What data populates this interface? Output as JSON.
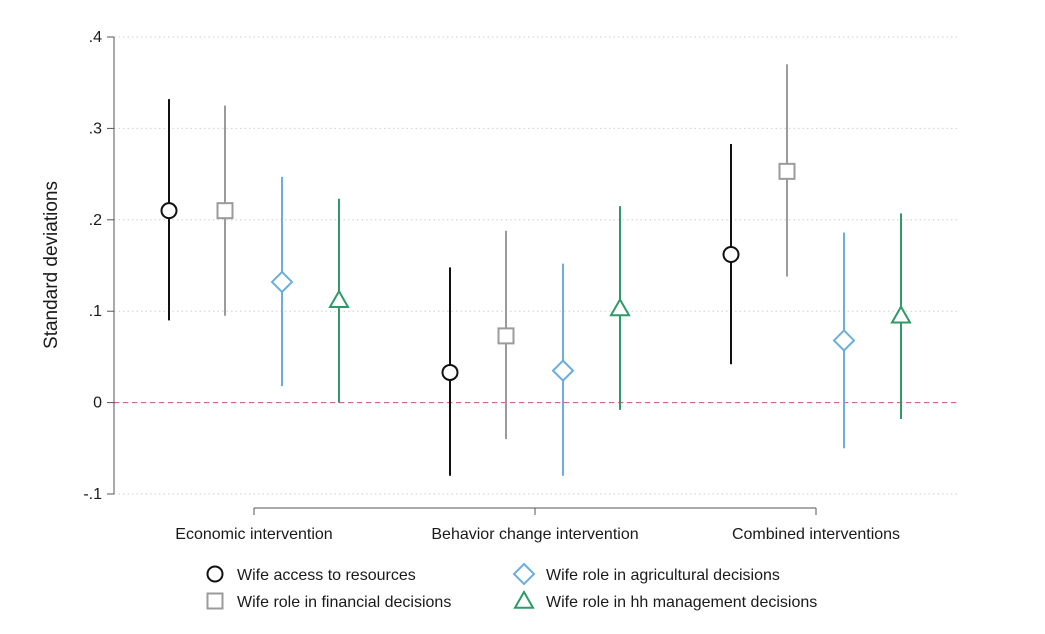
{
  "chart_data": {
    "type": "errorbar",
    "title": "",
    "xlabel": "",
    "ylabel": "Standard deviations",
    "ylim": [
      -0.1,
      0.4
    ],
    "yticks": [
      {
        "value": -0.1,
        "label": "-.1"
      },
      {
        "value": 0,
        "label": "0"
      },
      {
        "value": 0.1,
        "label": ".1"
      },
      {
        "value": 0.2,
        "label": ".2"
      },
      {
        "value": 0.3,
        "label": ".3"
      },
      {
        "value": 0.4,
        "label": ".4"
      }
    ],
    "grid": true,
    "reference_line": {
      "y": 0,
      "style": "dashed",
      "color": "#c0587e"
    },
    "categories": [
      "Economic intervention",
      "Behavior change intervention",
      "Combined interventions"
    ],
    "series": [
      {
        "name": "Wife access to resources",
        "marker": "circle",
        "color": "#111111",
        "points": [
          {
            "estimate": 0.21,
            "lower": 0.09,
            "upper": 0.332
          },
          {
            "estimate": 0.033,
            "lower": -0.08,
            "upper": 0.148
          },
          {
            "estimate": 0.162,
            "lower": 0.042,
            "upper": 0.283
          }
        ]
      },
      {
        "name": "Wife role in financial decisions",
        "marker": "square",
        "color": "#9b9b9b",
        "points": [
          {
            "estimate": 0.21,
            "lower": 0.095,
            "upper": 0.325
          },
          {
            "estimate": 0.073,
            "lower": -0.04,
            "upper": 0.188
          },
          {
            "estimate": 0.253,
            "lower": 0.138,
            "upper": 0.37
          }
        ]
      },
      {
        "name": "Wife role in agricultural decisions",
        "marker": "diamond",
        "color": "#6aaee0",
        "points": [
          {
            "estimate": 0.132,
            "lower": 0.018,
            "upper": 0.247
          },
          {
            "estimate": 0.035,
            "lower": -0.08,
            "upper": 0.152
          },
          {
            "estimate": 0.068,
            "lower": -0.05,
            "upper": 0.186
          }
        ]
      },
      {
        "name": "Wife role in hh management decisions",
        "marker": "triangle",
        "color": "#2e9a68",
        "points": [
          {
            "estimate": 0.112,
            "lower": 0.0,
            "upper": 0.223
          },
          {
            "estimate": 0.103,
            "lower": -0.008,
            "upper": 0.215
          },
          {
            "estimate": 0.095,
            "lower": -0.018,
            "upper": 0.207
          }
        ]
      }
    ],
    "legend": {
      "position": "bottom",
      "columns": 2
    }
  }
}
